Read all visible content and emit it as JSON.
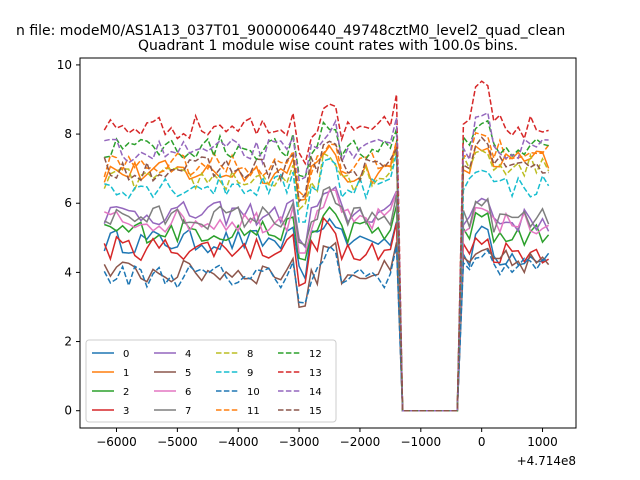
{
  "figure": {
    "suptitle": "n file: modeM0/AS1A13_037T01_9000006440_49748cztM0_level2_quad_clean"
  },
  "chart_data": {
    "type": "line",
    "title": "Quadrant 1 module wise count rates with 100.0s bins.",
    "xlabel": "",
    "ylabel": "",
    "x_offset_label": "+4.714e8",
    "xlim": [
      -6600,
      1550
    ],
    "ylim": [
      -0.5,
      10.2
    ],
    "x_ticks": [
      -6000,
      -5000,
      -4000,
      -3000,
      -2000,
      -1000,
      0,
      1000
    ],
    "x_tick_labels": [
      "−6000",
      "−5000",
      "−4000",
      "−3000",
      "−2000",
      "−1000",
      "0",
      "1000"
    ],
    "y_ticks": [
      0,
      2,
      4,
      6,
      8,
      10
    ],
    "y_tick_labels": [
      "0",
      "2",
      "4",
      "6",
      "8",
      "10"
    ],
    "grid": false,
    "legend_position": "lower-left",
    "legend_columns": 4,
    "x_sampling": {
      "start": -6200,
      "end": 1150,
      "step": 100,
      "gap_start": -1300,
      "gap_end": -400
    },
    "series": [
      {
        "name": "0",
        "color": "#1f77b4",
        "dash": "solid",
        "level_before": 4.9,
        "level_after": 4.5,
        "spike": 5.2
      },
      {
        "name": "1",
        "color": "#ff7f0e",
        "dash": "solid",
        "level_before": 6.9,
        "level_after": 7.2,
        "spike": 7.6
      },
      {
        "name": "2",
        "color": "#2ca02c",
        "dash": "solid",
        "level_before": 5.2,
        "level_after": 5.1,
        "spike": 5.6
      },
      {
        "name": "3",
        "color": "#d62728",
        "dash": "solid",
        "level_before": 4.7,
        "level_after": 4.6,
        "spike": 4.9
      },
      {
        "name": "4",
        "color": "#9467bd",
        "dash": "solid",
        "level_before": 5.7,
        "level_after": 5.5,
        "spike": 6.1
      },
      {
        "name": "5",
        "color": "#8c564b",
        "dash": "solid",
        "level_before": 4.0,
        "level_after": 4.3,
        "spike": 4.6
      },
      {
        "name": "6",
        "color": "#e377c2",
        "dash": "solid",
        "level_before": 5.5,
        "level_after": 5.4,
        "spike": 5.9
      },
      {
        "name": "7",
        "color": "#7f7f7f",
        "dash": "solid",
        "level_before": 5.6,
        "level_after": 5.5,
        "spike": 6.0
      },
      {
        "name": "8",
        "color": "#bcbd22",
        "dash": "dashed",
        "level_before": 6.7,
        "level_after": 7.1,
        "spike": 7.5
      },
      {
        "name": "9",
        "color": "#17becf",
        "dash": "dashed",
        "level_before": 6.5,
        "level_after": 6.5,
        "spike": 7.0
      },
      {
        "name": "10",
        "color": "#1f77b4",
        "dash": "dashed",
        "level_before": 3.9,
        "level_after": 4.2,
        "spike": 4.5
      },
      {
        "name": "11",
        "color": "#ff7f0e",
        "dash": "dashed",
        "level_before": 7.1,
        "level_after": 7.5,
        "spike": 7.9
      },
      {
        "name": "12",
        "color": "#2ca02c",
        "dash": "dashed",
        "level_before": 7.6,
        "level_after": 7.6,
        "spike": 8.3
      },
      {
        "name": "13",
        "color": "#d62728",
        "dash": "dashed",
        "level_before": 8.2,
        "level_after": 8.2,
        "spike": 9.4
      },
      {
        "name": "14",
        "color": "#9467bd",
        "dash": "dashed",
        "level_before": 7.5,
        "level_after": 7.6,
        "spike": 8.5
      },
      {
        "name": "15",
        "color": "#8c564b",
        "dash": "dashed",
        "level_before": 7.0,
        "level_after": 7.0,
        "spike": 7.8
      }
    ]
  }
}
